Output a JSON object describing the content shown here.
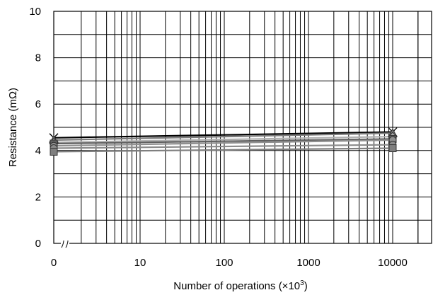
{
  "chart_data": {
    "type": "line",
    "title": "",
    "xlabel": "Number of operations (×10",
    "xlabel_sup": "3",
    "xlabel_end": ")",
    "ylabel": "Resistance  (mΩ)",
    "x_scale": "log",
    "x_break_after": 0,
    "xlim": [
      0,
      30000
    ],
    "ylim": [
      0,
      10
    ],
    "grid": true,
    "x_ticks": [
      {
        "value": 0,
        "label": "0"
      },
      {
        "value": 10,
        "label": "10"
      },
      {
        "value": 100,
        "label": "100"
      },
      {
        "value": 1000,
        "label": "1000"
      },
      {
        "value": 10000,
        "label": "10000"
      }
    ],
    "y_ticks": [
      {
        "value": 0,
        "label": "0"
      },
      {
        "value": 2,
        "label": "2"
      },
      {
        "value": 4,
        "label": "4"
      },
      {
        "value": 6,
        "label": "6"
      },
      {
        "value": 8,
        "label": "8"
      },
      {
        "value": 10,
        "label": "10"
      }
    ],
    "series": [
      {
        "marker": "x",
        "color": "#000000",
        "x": [
          0,
          10000
        ],
        "y": [
          4.55,
          4.8
        ]
      },
      {
        "marker": "triangle",
        "color": "#7a7a7a",
        "x": [
          0,
          10000
        ],
        "y": [
          4.45,
          4.75
        ]
      },
      {
        "marker": "diamond",
        "color": "#b0b0b0",
        "x": [
          0,
          10000
        ],
        "y": [
          4.35,
          4.6
        ]
      },
      {
        "marker": "square",
        "color": "#606060",
        "x": [
          0,
          10000
        ],
        "y": [
          4.3,
          4.5
        ]
      },
      {
        "marker": "circle",
        "color": "#909090",
        "x": [
          0,
          10000
        ],
        "y": [
          4.2,
          4.45
        ]
      },
      {
        "marker": "circle",
        "color": "#8c8c8c",
        "x": [
          0,
          10000
        ],
        "y": [
          4.1,
          4.25
        ]
      },
      {
        "marker": "square",
        "color": "#7f7f7f",
        "x": [
          0,
          10000
        ],
        "y": [
          3.95,
          4.1
        ]
      }
    ]
  }
}
